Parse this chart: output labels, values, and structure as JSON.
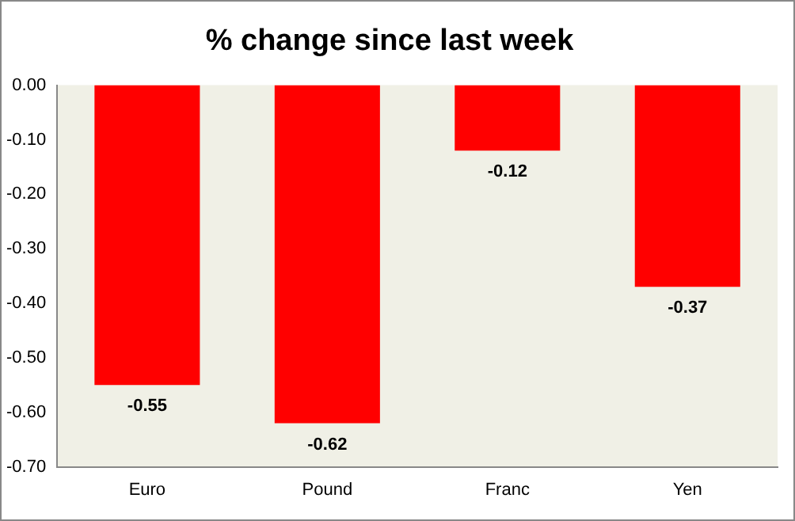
{
  "chart_data": {
    "type": "bar",
    "title": "% change since last week",
    "categories": [
      "Euro",
      "Pound",
      "Franc",
      "Yen"
    ],
    "values": [
      -0.55,
      -0.62,
      -0.12,
      -0.37
    ],
    "color": "#ff0000",
    "ylim": [
      -0.7,
      0
    ],
    "yticks": [
      {
        "value": 0,
        "label": "0.00"
      },
      {
        "value": -0.1,
        "label": "-0.10"
      },
      {
        "value": -0.2,
        "label": "-0.20"
      },
      {
        "value": -0.3,
        "label": "-0.30"
      },
      {
        "value": -0.4,
        "label": "-0.40"
      },
      {
        "value": -0.5,
        "label": "-0.50"
      },
      {
        "value": -0.6,
        "label": "-0.60"
      },
      {
        "value": -0.7,
        "label": "-0.70"
      }
    ],
    "data_labels": true,
    "grid": false,
    "legend": false
  }
}
